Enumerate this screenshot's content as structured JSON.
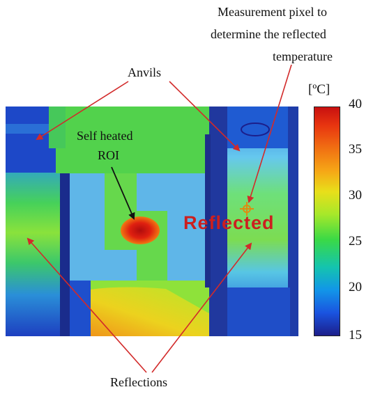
{
  "labels": {
    "measurement": [
      "Measurement pixel to",
      "determine the reflected",
      "temperature"
    ],
    "anvils": "Anvils",
    "self_heated": [
      "Self heated",
      "ROI"
    ],
    "reflections": "Reflections",
    "reflected_stamp": "Reflected"
  },
  "colorbar": {
    "unit": "[ºC]",
    "ticks": [
      "40",
      "35",
      "30",
      "25",
      "20",
      "15"
    ]
  },
  "colors": {
    "arrow_red": "#d22a2a",
    "arrow_black": "#111111",
    "stamp_red": "#cc1f1f"
  }
}
